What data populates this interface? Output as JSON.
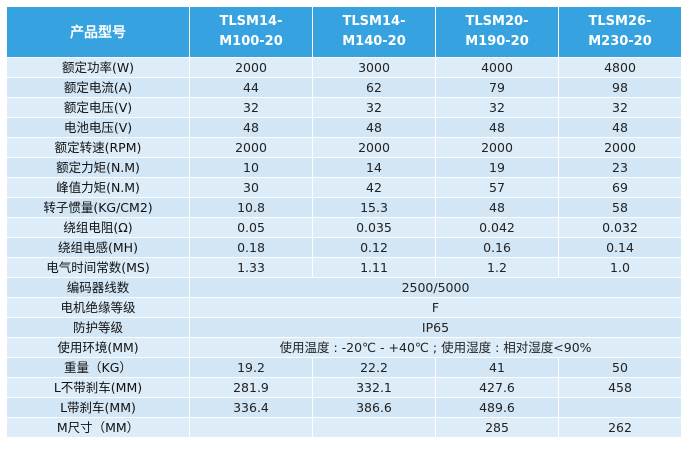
{
  "header": {
    "label": "产品型号",
    "models": [
      {
        "line1": "TLSM14-",
        "line2": "M100-20"
      },
      {
        "line1": "TLSM14-",
        "line2": "M140-20"
      },
      {
        "line1": "TLSM20-",
        "line2": "M190-20"
      },
      {
        "line1": "TLSM26-",
        "line2": "M230-20"
      }
    ]
  },
  "rows": [
    {
      "label": "额定功率(W)",
      "values": [
        "2000",
        "3000",
        "4000",
        "4800"
      ]
    },
    {
      "label": "额定电流(A)",
      "values": [
        "44",
        "62",
        "79",
        "98"
      ]
    },
    {
      "label": "额定电压(V)",
      "values": [
        "32",
        "32",
        "32",
        "32"
      ]
    },
    {
      "label": "电池电压(V)",
      "values": [
        "48",
        "48",
        "48",
        "48"
      ]
    },
    {
      "label": "额定转速(RPM)",
      "values": [
        "2000",
        "2000",
        "2000",
        "2000"
      ]
    },
    {
      "label": "额定力矩(N.M)",
      "values": [
        "10",
        "14",
        "19",
        "23"
      ]
    },
    {
      "label": "峰值力矩(N.M)",
      "values": [
        "30",
        "42",
        "57",
        "69"
      ]
    },
    {
      "label": "转子惯量(KG/CM2)",
      "values": [
        "10.8",
        "15.3",
        "48",
        "58"
      ]
    },
    {
      "label": "绕组电阻(Ω)",
      "values": [
        "0.05",
        "0.035",
        "0.042",
        "0.032"
      ]
    },
    {
      "label": "绕组电感(MH)",
      "values": [
        "0.18",
        "0.12",
        "0.16",
        "0.14"
      ]
    },
    {
      "label": "电气时间常数(MS)",
      "values": [
        "1.33",
        "1.11",
        "1.2",
        "1.0"
      ]
    },
    {
      "label": "编码器线数",
      "merged": "2500/5000"
    },
    {
      "label": "电机绝缘等级",
      "merged": "F"
    },
    {
      "label": "防护等级",
      "merged": "IP65"
    },
    {
      "label": "使用环境(MM)",
      "merged": "使用温度 : -20℃ - +40℃ ; 使用湿度 : 相对湿度<90%"
    },
    {
      "label": "重量（KG）",
      "values": [
        "19.2",
        "22.2",
        "41",
        "50"
      ]
    },
    {
      "label": "L不带刹车(MM)",
      "values": [
        "281.9",
        "332.1",
        "427.6",
        "458"
      ]
    },
    {
      "label": "L带刹车(MM)",
      "values": [
        "336.4",
        "386.6",
        "489.6",
        ""
      ]
    },
    {
      "label": "M尺寸（MM）",
      "values": [
        "",
        "",
        "285",
        "262"
      ]
    }
  ],
  "colors": {
    "header_bg": "#36a3e0",
    "header_text": "#ffffff",
    "cell_bg": "#dcecf8"
  }
}
